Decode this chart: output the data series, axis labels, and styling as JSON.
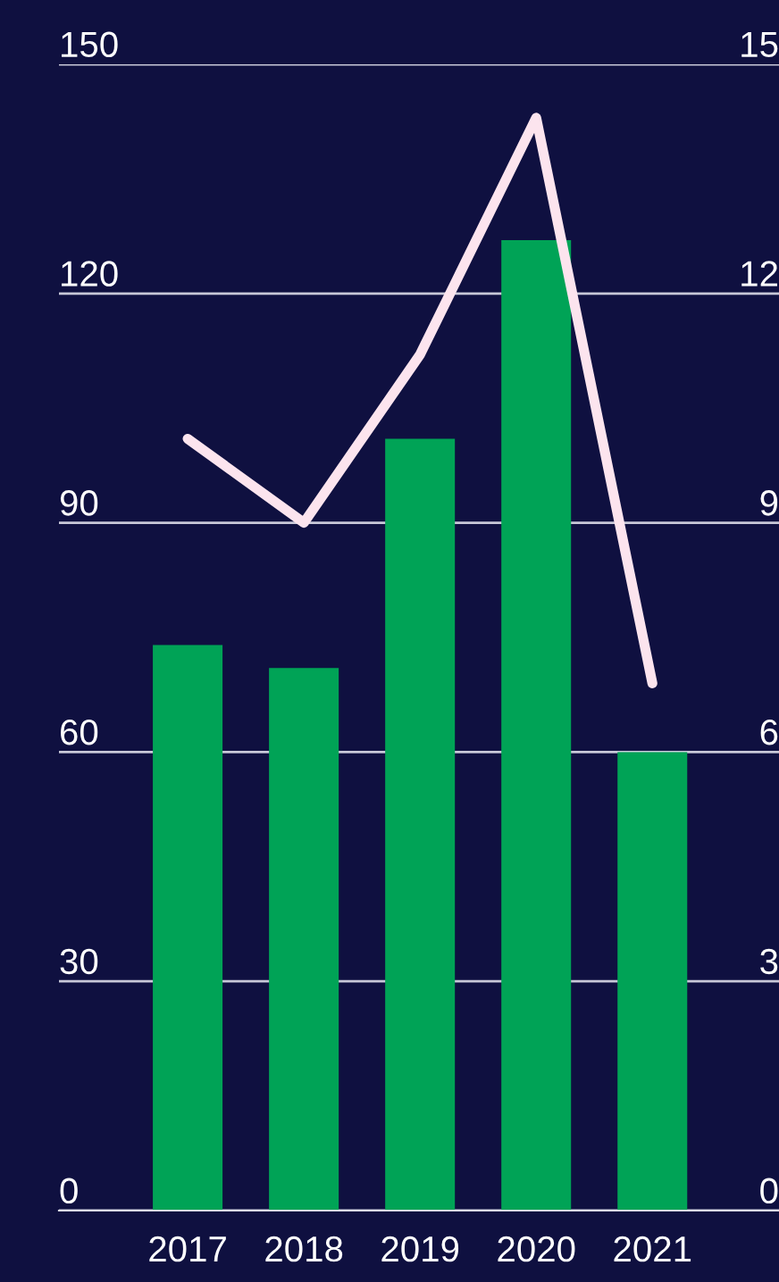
{
  "chart_data": {
    "type": "bar",
    "categories": [
      "2017",
      "2018",
      "2019",
      "2020",
      "2021"
    ],
    "series": [
      {
        "color": "#00a356",
        "values": [
          74,
          71,
          101,
          127,
          60
        ]
      },
      {
        "type": "line",
        "axis": "y2",
        "color": "#fce4ee",
        "values": [
          10.1,
          9.0,
          11.2,
          14.3,
          6.9
        ]
      }
    ],
    "ylim": [
      0,
      150
    ],
    "yticks": [
      0,
      30,
      60,
      90,
      120,
      150
    ],
    "y2lim": [
      0,
      15
    ],
    "y2ticks": [
      0,
      3,
      6,
      9,
      12,
      15
    ],
    "grid": "y",
    "legend": false,
    "marker": "none",
    "line_style": "solid"
  }
}
